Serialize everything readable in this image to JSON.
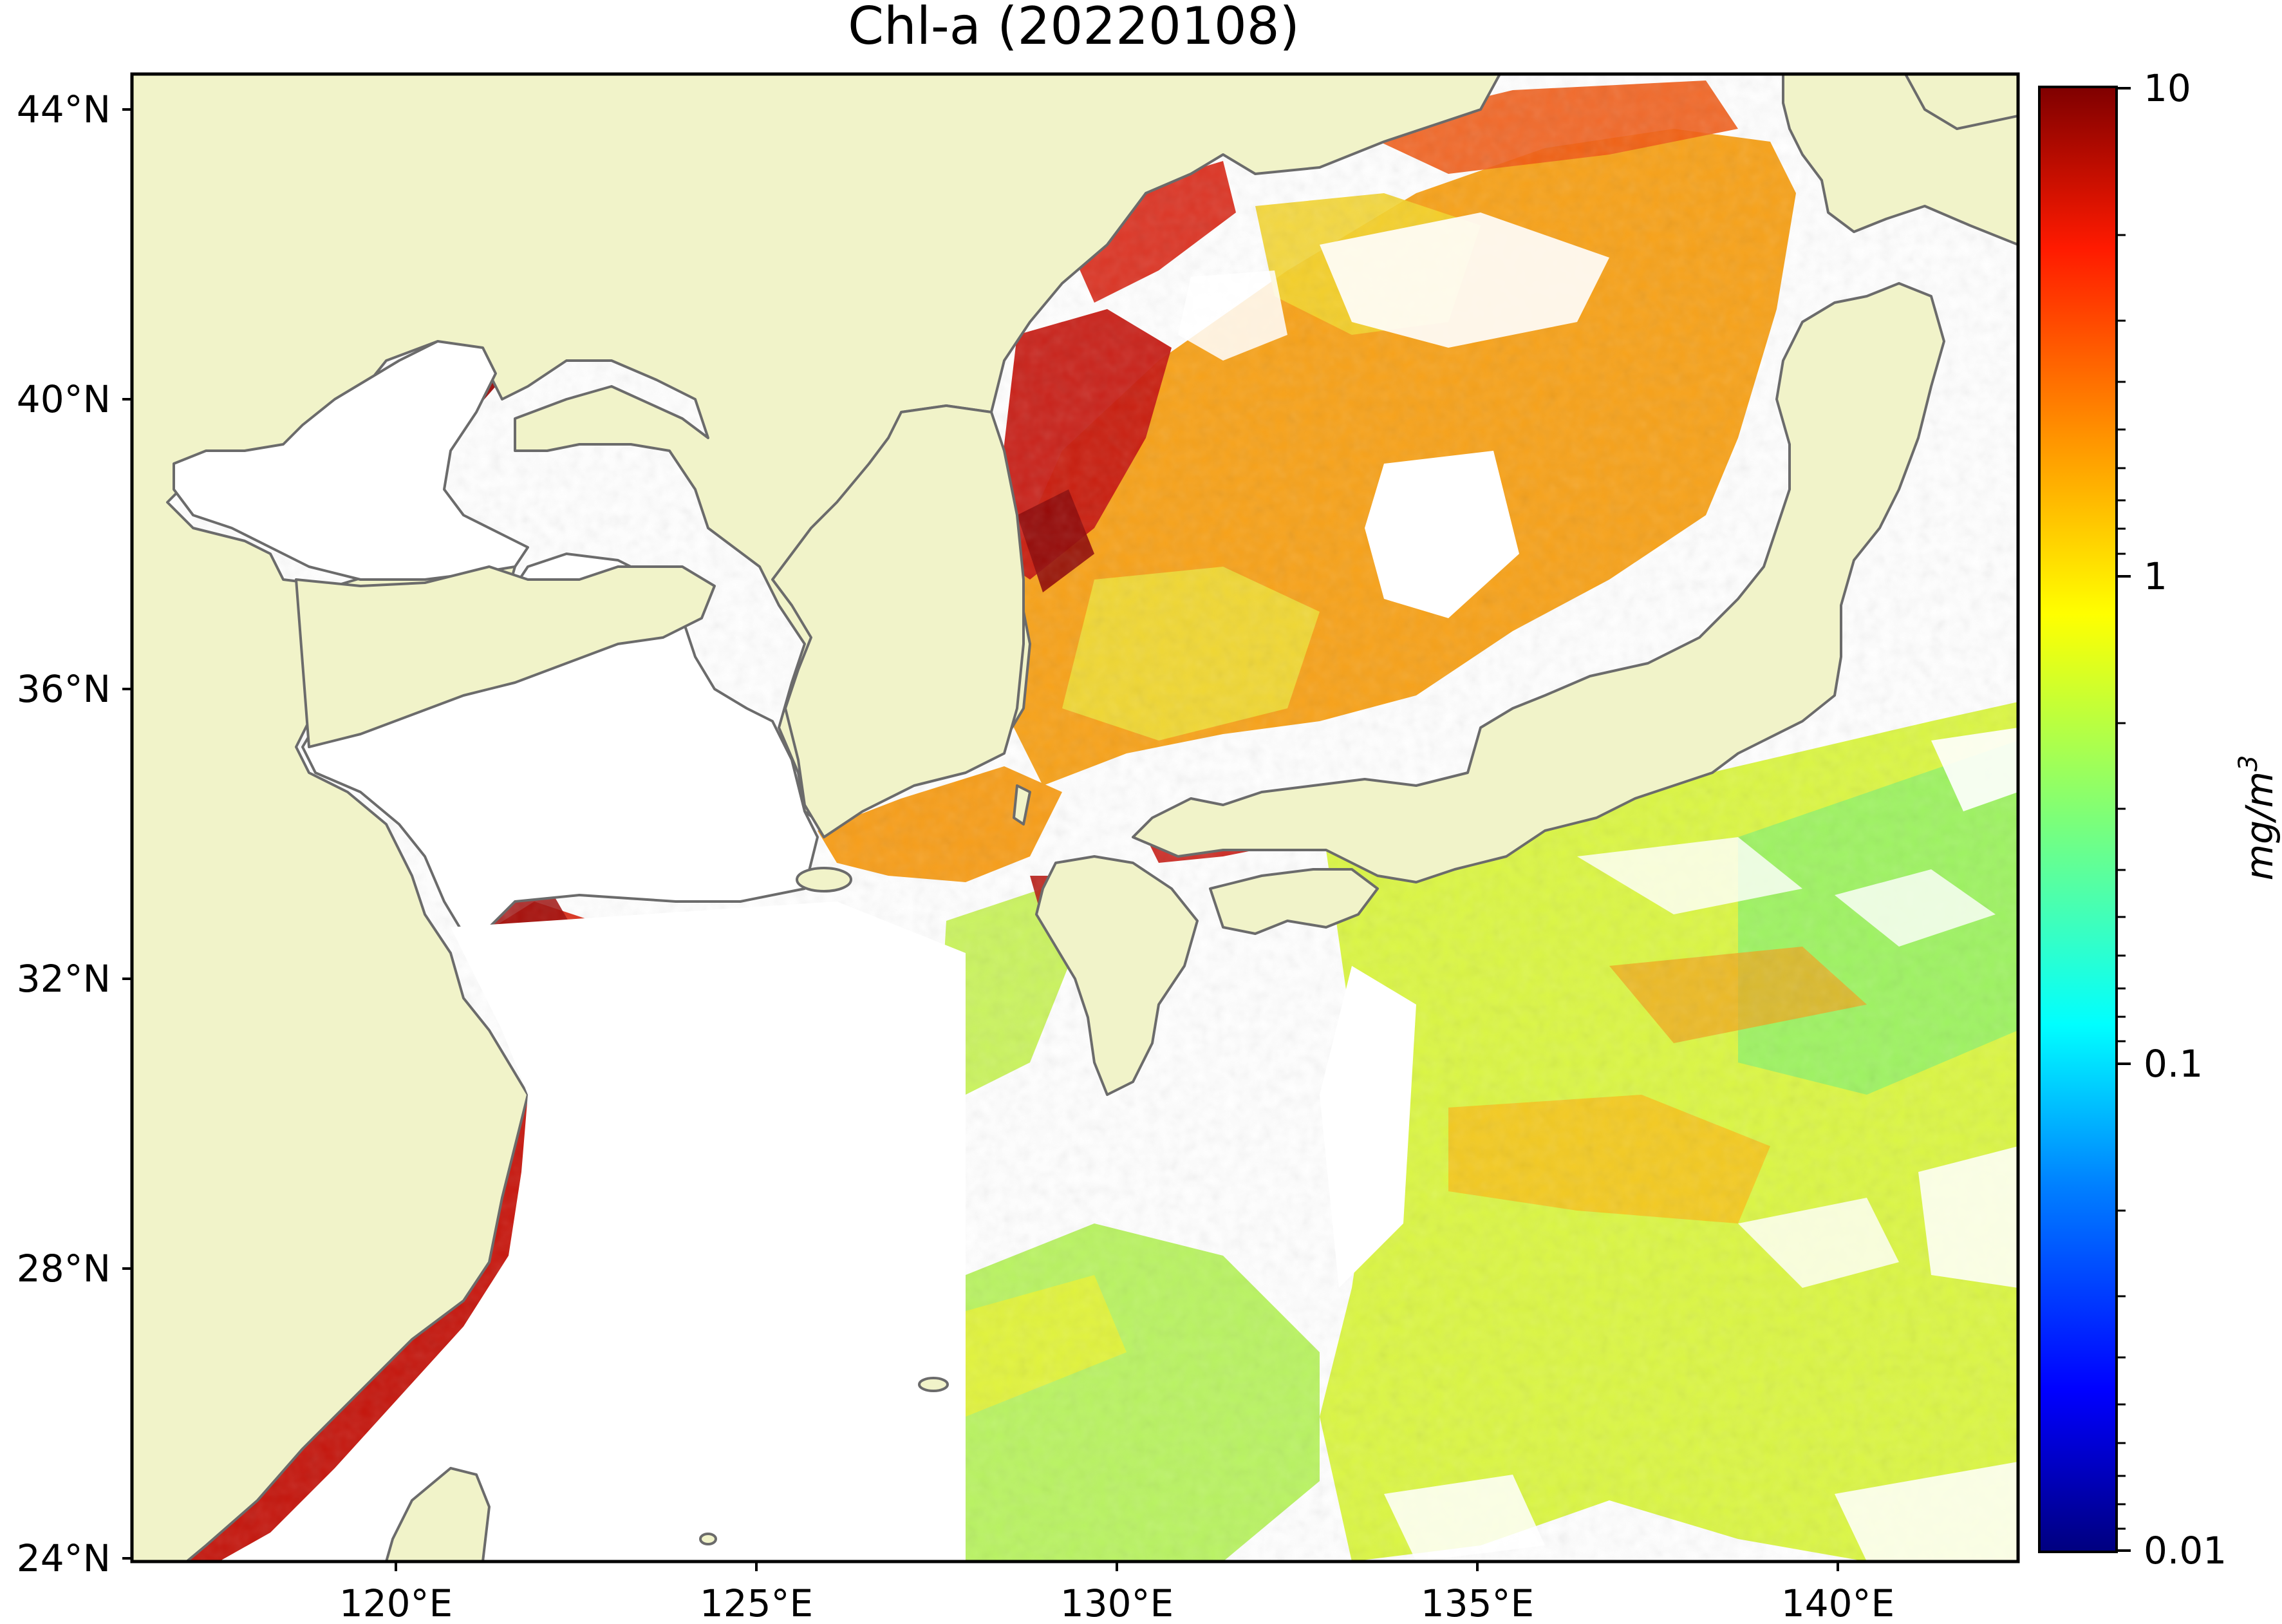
{
  "title": "Chl-a (20220108)",
  "map": {
    "lat_ticks": [
      "44°N",
      "40°N",
      "36°N",
      "32°N",
      "28°N",
      "24°N"
    ],
    "lon_ticks": [
      "120°E",
      "125°E",
      "130°E",
      "135°E",
      "140°E"
    ],
    "extent": {
      "lon_min": 116.7,
      "lon_max": 142.9,
      "lat_min": 24.0,
      "lat_max": 44.5
    }
  },
  "colorbar": {
    "tick_labels": [
      "10",
      "1",
      "0.1",
      "0.01"
    ],
    "unit_base": "mg/m",
    "unit_exp": "3",
    "scale": "log",
    "range": [
      0.01,
      10
    ],
    "colormap": "jet"
  },
  "colors": {
    "land": "#f1f3c9",
    "coastline": "#6b6b6b",
    "no_data": "#ffffff"
  }
}
